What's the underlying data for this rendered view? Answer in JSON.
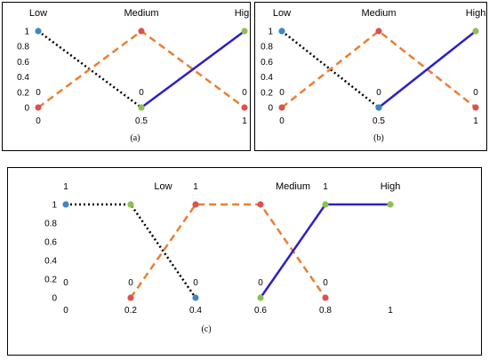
{
  "chart_data": [
    {
      "type": "line",
      "caption": "(a)",
      "xlim": [
        0,
        1
      ],
      "ylim": [
        0,
        1
      ],
      "x_ticks": [
        "0",
        "0.5",
        "1"
      ],
      "y_ticks": [
        "1",
        "0.8",
        "0.6",
        "0.4",
        "0.2",
        "0"
      ],
      "category_labels": [
        "Low",
        "Medium",
        "High"
      ],
      "point_labels": [
        {
          "x": 0,
          "y": 0,
          "text": "0"
        },
        {
          "x": 0.5,
          "y": 0,
          "text": "0"
        },
        {
          "x": 1,
          "y": 0,
          "text": "0"
        }
      ],
      "series": [
        {
          "x": [
            0,
            0.5
          ],
          "y": [
            1,
            0
          ],
          "color": "#000000",
          "dash": "dotted",
          "marker_colors": [
            "#3a87c8",
            "#8cc152"
          ]
        },
        {
          "x": [
            0,
            0.5,
            1
          ],
          "y": [
            0,
            1,
            0
          ],
          "color": "#ed7d31",
          "dash": "dashed",
          "marker_colors": [
            "#d9534f",
            "#d9534f",
            "#d9534f"
          ]
        },
        {
          "x": [
            0.5,
            1
          ],
          "y": [
            0,
            1
          ],
          "color": "#2e1fc4",
          "dash": "solid",
          "marker_colors": [
            "#8cc152",
            "#8cc152"
          ]
        }
      ]
    },
    {
      "type": "line",
      "caption": "(b)",
      "xlim": [
        0,
        1
      ],
      "ylim": [
        0,
        1
      ],
      "x_ticks": [
        "0",
        "0.5",
        "1"
      ],
      "y_ticks": [
        "1",
        "0.8",
        "0.6",
        "0.4",
        "0.2",
        "0"
      ],
      "category_labels": [
        "Low",
        "Medium",
        "High"
      ],
      "point_labels": [
        {
          "x": 0,
          "y": 0,
          "text": "0"
        },
        {
          "x": 0.5,
          "y": 0,
          "text": "0"
        },
        {
          "x": 1,
          "y": 0,
          "text": "0"
        }
      ],
      "series": [
        {
          "x": [
            0,
            0.5
          ],
          "y": [
            1,
            0
          ],
          "color": "#000000",
          "dash": "dotted",
          "marker_colors": [
            "#3a87c8",
            "#3a87c8"
          ]
        },
        {
          "x": [
            0,
            0.5,
            1
          ],
          "y": [
            0,
            1,
            0
          ],
          "color": "#ed7d31",
          "dash": "dashed",
          "marker_colors": [
            "#d9534f",
            "#d9534f",
            "#d9534f"
          ]
        },
        {
          "x": [
            0.5,
            1
          ],
          "y": [
            0,
            1
          ],
          "color": "#2e1fc4",
          "dash": "solid",
          "marker_colors": [
            "#3a87c8",
            "#8cc152"
          ]
        }
      ]
    },
    {
      "type": "line",
      "caption": "(c)",
      "xlim": [
        0,
        1
      ],
      "ylim": [
        0,
        1
      ],
      "x_ticks": [
        "0",
        "0.2",
        "0.4",
        "0.6",
        "0.8",
        "1"
      ],
      "y_ticks": [
        "1",
        "0.8",
        "0.6",
        "0.4",
        "0.2",
        "0"
      ],
      "category_labels": [
        "Low",
        "Medium",
        "High"
      ],
      "point_labels": [
        {
          "x": 0,
          "y": 1,
          "text": "1"
        },
        {
          "x": 0.4,
          "y": 1,
          "text": "1"
        },
        {
          "x": 0.8,
          "y": 1,
          "text": "1"
        },
        {
          "x": 0,
          "y": 0,
          "text": "0"
        },
        {
          "x": 0.2,
          "y": 0,
          "text": "0"
        },
        {
          "x": 0.4,
          "y": 0,
          "text": "0"
        },
        {
          "x": 0.6,
          "y": 0,
          "text": "0"
        },
        {
          "x": 0.8,
          "y": 0,
          "text": "0"
        }
      ],
      "series": [
        {
          "x": [
            0,
            0.2,
            0.4
          ],
          "y": [
            1,
            1,
            0
          ],
          "color": "#000000",
          "dash": "dotted",
          "marker_colors": [
            "#3a87c8",
            "#8cc152",
            "#3a87c8"
          ]
        },
        {
          "x": [
            0.2,
            0.4,
            0.6,
            0.8
          ],
          "y": [
            0,
            1,
            1,
            0
          ],
          "color": "#ed7d31",
          "dash": "dashed",
          "marker_colors": [
            "#d9534f",
            "#d9534f",
            "#d9534f",
            "#d9534f"
          ]
        },
        {
          "x": [
            0.6,
            0.8,
            1
          ],
          "y": [
            0,
            1,
            1
          ],
          "color": "#2e1fc4",
          "dash": "solid",
          "marker_colors": [
            "#8cc152",
            "#8cc152",
            "#8cc152"
          ]
        }
      ]
    }
  ]
}
